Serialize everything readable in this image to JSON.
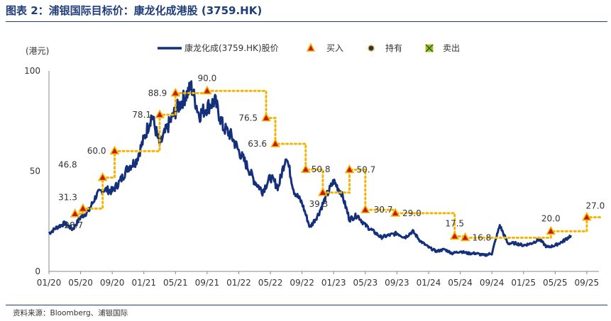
{
  "title": "图表 2：浦银国际目标价：康龙化成港股 (3759.HK)",
  "source": "资料来源：Bloomberg、浦银国际",
  "chart_data": {
    "type": "line",
    "ylabel": "(港元)",
    "ylim": [
      0,
      100
    ],
    "y_ticks": [
      0,
      50,
      100
    ],
    "x_tick_labels": [
      "01/20",
      "05/20",
      "09/20",
      "01/21",
      "05/21",
      "09/21",
      "01/22",
      "05/22",
      "09/22",
      "01/23",
      "05/23",
      "09/23",
      "01/24",
      "05/24",
      "09/24",
      "01/25",
      "05/25",
      "09/25"
    ],
    "x_range": [
      "2020-01",
      "2025-10"
    ],
    "grid": false,
    "legend_position": "top-center",
    "colors": {
      "price": "#14307a",
      "target": "#f4b400",
      "buy_fill": "#c8170d",
      "buy_edge": "#f4b400",
      "sell": "#8bc34a",
      "hold": "#14307a"
    },
    "legend": [
      {
        "key": "price",
        "label": "康龙化成(3759.HK)股价"
      },
      {
        "key": "buy",
        "label": "买入"
      },
      {
        "key": "hold",
        "label": "持有"
      },
      {
        "key": "sell",
        "label": "卖出"
      }
    ],
    "price_series": [
      [
        "2020-01",
        19
      ],
      [
        "2020-02",
        22
      ],
      [
        "2020-03",
        24
      ],
      [
        "2020-04",
        21
      ],
      [
        "2020-05",
        27
      ],
      [
        "2020-06",
        30
      ],
      [
        "2020-07",
        38
      ],
      [
        "2020-08",
        41
      ],
      [
        "2020-09",
        40
      ],
      [
        "2020-10",
        45
      ],
      [
        "2020-11",
        52
      ],
      [
        "2020-12",
        55
      ],
      [
        "2021-01",
        66
      ],
      [
        "2021-02",
        78
      ],
      [
        "2021-03",
        63
      ],
      [
        "2021-04",
        72
      ],
      [
        "2021-05",
        80
      ],
      [
        "2021-06",
        86
      ],
      [
        "2021-07",
        92
      ],
      [
        "2021-08",
        78
      ],
      [
        "2021-09",
        82
      ],
      [
        "2021-10",
        85
      ],
      [
        "2021-11",
        72
      ],
      [
        "2021-12",
        68
      ],
      [
        "2022-01",
        60
      ],
      [
        "2022-02",
        53
      ],
      [
        "2022-03",
        45
      ],
      [
        "2022-04",
        40
      ],
      [
        "2022-05",
        47
      ],
      [
        "2022-06",
        42
      ],
      [
        "2022-07",
        58
      ],
      [
        "2022-08",
        40
      ],
      [
        "2022-09",
        34
      ],
      [
        "2022-10",
        22
      ],
      [
        "2022-11",
        28
      ],
      [
        "2022-12",
        37
      ],
      [
        "2023-01",
        45
      ],
      [
        "2023-02",
        39
      ],
      [
        "2023-03",
        26
      ],
      [
        "2023-04",
        28
      ],
      [
        "2023-05",
        23
      ],
      [
        "2023-06",
        20
      ],
      [
        "2023-07",
        17
      ],
      [
        "2023-08",
        18
      ],
      [
        "2023-09",
        19
      ],
      [
        "2023-10",
        17
      ],
      [
        "2023-11",
        20
      ],
      [
        "2023-12",
        15
      ],
      [
        "2024-01",
        12
      ],
      [
        "2024-02",
        10
      ],
      [
        "2024-03",
        11
      ],
      [
        "2024-04",
        9
      ],
      [
        "2024-05",
        10
      ],
      [
        "2024-06",
        9
      ],
      [
        "2024-07",
        9
      ],
      [
        "2024-08",
        8
      ],
      [
        "2024-09",
        9
      ],
      [
        "2024-10",
        23
      ],
      [
        "2024-11",
        14
      ],
      [
        "2024-12",
        14
      ],
      [
        "2025-01",
        13
      ],
      [
        "2025-02",
        14
      ],
      [
        "2025-03",
        16
      ],
      [
        "2025-04",
        12
      ],
      [
        "2025-05",
        13
      ],
      [
        "2025-06",
        15
      ],
      [
        "2025-07",
        18
      ]
    ],
    "target_events": [
      {
        "date": "2020-04-10",
        "value": 28.7,
        "label": "28.7",
        "rating": "buy"
      },
      {
        "date": "2020-05-10",
        "value": 31.3,
        "label": "31.3",
        "rating": "buy"
      },
      {
        "date": "2020-07-25",
        "value": 46.8,
        "label": "46.8",
        "rating": "buy"
      },
      {
        "date": "2020-09-10",
        "value": 60.0,
        "label": "60.0",
        "rating": "buy"
      },
      {
        "date": "2021-03-01",
        "value": 78.1,
        "label": "78.1",
        "rating": "buy"
      },
      {
        "date": "2021-05-01",
        "value": 88.9,
        "label": "88.9",
        "rating": "buy"
      },
      {
        "date": "2021-09-01",
        "value": 90.0,
        "label": "90.0",
        "rating": "buy"
      },
      {
        "date": "2022-04-15",
        "value": 76.5,
        "label": "76.5",
        "rating": "buy"
      },
      {
        "date": "2022-05-20",
        "value": 63.6,
        "label": "63.6",
        "rating": "buy"
      },
      {
        "date": "2022-09-15",
        "value": 50.8,
        "label": "50.8",
        "rating": "buy"
      },
      {
        "date": "2022-11-20",
        "value": 39.3,
        "label": "39.3",
        "rating": "buy"
      },
      {
        "date": "2023-03-01",
        "value": 50.7,
        "label": "50.7",
        "rating": "buy"
      },
      {
        "date": "2023-05-01",
        "value": 30.7,
        "label": "30.7",
        "rating": "buy"
      },
      {
        "date": "2023-08-25",
        "value": 29.0,
        "label": "29.0",
        "rating": "buy"
      },
      {
        "date": "2024-04-10",
        "value": 17.5,
        "label": "17.5",
        "rating": "buy"
      },
      {
        "date": "2024-05-20",
        "value": 16.8,
        "label": "16.8",
        "rating": "buy"
      },
      {
        "date": "2025-04-15",
        "value": 20.0,
        "label": "20.0",
        "rating": "buy"
      },
      {
        "date": "2025-09-01",
        "value": 27.0,
        "label": "27.0",
        "rating": "buy"
      }
    ]
  }
}
